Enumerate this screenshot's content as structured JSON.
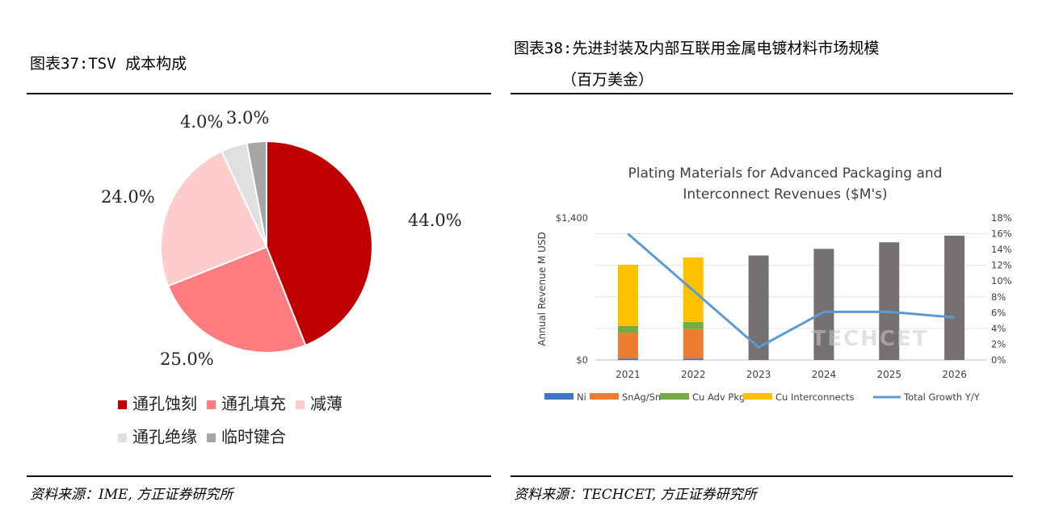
{
  "left": {
    "title": "图表37:TSV 成本构成",
    "source": "资料来源：IME, 方正证券研究所"
  },
  "right": {
    "title_line1": "图表38:先进封装及内部互联用金属电镀材料市场规模",
    "title_line2": "（百万美金）",
    "source": "资料来源：TECHCET, 方正证券研究所",
    "watermark": "TECHCET"
  },
  "chart_data": [
    {
      "type": "pie",
      "title": "",
      "slices": [
        {
          "label": "通孔蚀刻",
          "value": 44.0,
          "text": "44.0%",
          "color": "#c00000"
        },
        {
          "label": "通孔填充",
          "value": 25.0,
          "text": "25.0%",
          "color": "#ff7c80"
        },
        {
          "label": "减薄",
          "value": 24.0,
          "text": "24.0%",
          "color": "#ffcccc"
        },
        {
          "label": "通孔绝缘",
          "value": 4.0,
          "text": "4.0%",
          "color": "#e0e0e0"
        },
        {
          "label": "临时键合",
          "value": 3.0,
          "text": "3.0%",
          "color": "#a6a6a6"
        }
      ],
      "legend_position": "bottom"
    },
    {
      "type": "bar",
      "stacked": true,
      "title_lines": [
        "Plating Materials for Advanced Packaging and",
        "Interconnect Revenues ($M's)"
      ],
      "ylabel": "Annual Revenue M USD",
      "categories": [
        "2021",
        "2022",
        "2023",
        "2024",
        "2025",
        "2026"
      ],
      "ylim": [
        0,
        1400
      ],
      "y_tick_labels": [
        {
          "v": 0,
          "t": "$0"
        },
        {
          "v": 1400,
          "t": "$1,400"
        }
      ],
      "series": [
        {
          "name": "Ni",
          "color": "#4472c4",
          "values": [
            15,
            15,
            0,
            0,
            0,
            0
          ]
        },
        {
          "name": "SnAg/Sn",
          "color": "#ed7d31",
          "values": [
            255,
            290,
            0,
            0,
            0,
            0
          ]
        },
        {
          "name": "Cu Adv Pkg",
          "color": "#70ad47",
          "values": [
            65,
            70,
            0,
            0,
            0,
            0
          ]
        },
        {
          "name": "Cu Interconnects",
          "color": "#ffc000",
          "values": [
            605,
            635,
            0,
            0,
            0,
            0
          ]
        },
        {
          "name": "Total",
          "color": "#767171",
          "values": [
            0,
            0,
            1030,
            1095,
            1160,
            1225
          ]
        }
      ],
      "y2": {
        "ylim": [
          0,
          18
        ],
        "ticks": [
          "0%",
          "2%",
          "4%",
          "6%",
          "8%",
          "10%",
          "12%",
          "14%",
          "16%",
          "18%"
        ],
        "line": {
          "name": "Total Growth Y/Y",
          "color": "#5b9bd5",
          "values": [
            16.0,
            8.8,
            1.6,
            6.1,
            6.1,
            5.4
          ]
        }
      },
      "legend": [
        "Ni",
        "SnAg/Sn",
        "Cu Adv Pkg",
        "Cu Interconnects",
        "Total Growth Y/Y"
      ],
      "legend_position": "bottom"
    }
  ]
}
